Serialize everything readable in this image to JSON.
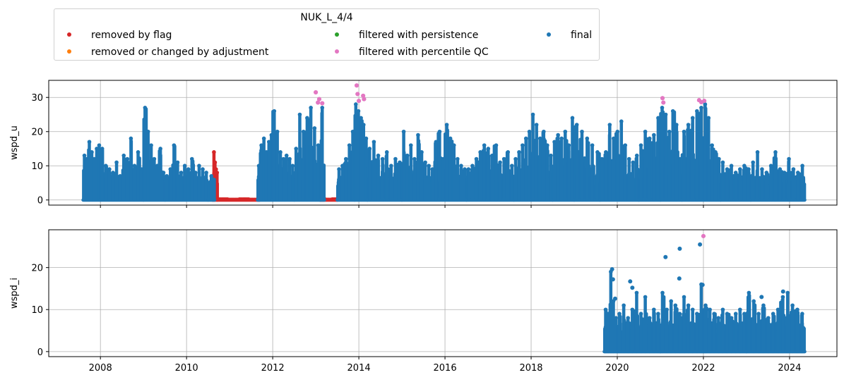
{
  "legend": {
    "title": "NUK_L_4/4",
    "items": [
      {
        "label": "removed by flag",
        "color": "#d62728"
      },
      {
        "label": "removed or changed by adjustment",
        "color": "#ff7f0e"
      },
      {
        "label": "filtered with persistence",
        "color": "#2ca02c"
      },
      {
        "label": "filtered with percentile QC",
        "color": "#e377c2"
      },
      {
        "label": "final",
        "color": "#1f77b4"
      }
    ]
  },
  "chart_data": [
    {
      "type": "scatter",
      "ylabel": "wspd_u",
      "xlim": [
        2006.8,
        2025.1
      ],
      "ylim": [
        -1.5,
        35
      ],
      "xticks": [
        2008,
        2010,
        2012,
        2014,
        2016,
        2018,
        2020,
        2022,
        2024
      ],
      "yticks": [
        0,
        10,
        20,
        30
      ],
      "grid": true,
      "series": [
        {
          "name": "final",
          "color": "#1f77b4",
          "segments": [
            {
              "x": [
                2007.6,
                2008.0
              ],
              "peaks": [
                13,
                12,
                17,
                14,
                12,
                15,
                16
              ]
            },
            {
              "x": [
                2008.0,
                2009.0
              ],
              "peaks": [
                15,
                10,
                9,
                8,
                11,
                7,
                13,
                12,
                18,
                10,
                14,
                9
              ]
            },
            {
              "x": [
                2009.0,
                2009.5
              ],
              "peaks": [
                27,
                20,
                16,
                12,
                10,
                15,
                8
              ]
            },
            {
              "x": [
                2009.5,
                2010.5
              ],
              "peaks": [
                7,
                9,
                16,
                11,
                8,
                10,
                9,
                12,
                8,
                10,
                9,
                8
              ]
            },
            {
              "x": [
                2010.5,
                2010.65
              ],
              "peaks": [
                5,
                7,
                6
              ]
            },
            {
              "x": [
                2011.65,
                2012.0
              ],
              "peaks": [
                10,
                16,
                18,
                14,
                17,
                19
              ]
            },
            {
              "x": [
                2012.0,
                2012.5
              ],
              "peaks": [
                26,
                20,
                14,
                12,
                13,
                12,
                10
              ]
            },
            {
              "x": [
                2012.5,
                2013.1
              ],
              "peaks": [
                15,
                25,
                20,
                24,
                27,
                21,
                16
              ]
            },
            {
              "x": [
                2013.1,
                2013.2
              ],
              "peaks": [
                27
              ]
            },
            {
              "x": [
                2013.5,
                2013.9
              ],
              "peaks": [
                9,
                10,
                12,
                16,
                20
              ]
            },
            {
              "x": [
                2013.9,
                2014.2
              ],
              "peaks": [
                28,
                26,
                24,
                22,
                18
              ]
            },
            {
              "x": [
                2014.2,
                2015.0
              ],
              "peaks": [
                15,
                17,
                13,
                12,
                14,
                10,
                12,
                11
              ]
            },
            {
              "x": [
                2015.0,
                2016.0
              ],
              "peaks": [
                20,
                13,
                16,
                12,
                19,
                14,
                11,
                10,
                9,
                17,
                20,
                12
              ]
            },
            {
              "x": [
                2016.0,
                2016.5
              ],
              "peaks": [
                22,
                18,
                16,
                12,
                10,
                9
              ]
            },
            {
              "x": [
                2016.5,
                2017.6
              ],
              "peaks": [
                9,
                10,
                12,
                14,
                16,
                15,
                13,
                16,
                11,
                12,
                14,
                10
              ]
            },
            {
              "x": [
                2017.6,
                2018.0
              ],
              "peaks": [
                12,
                14,
                16,
                18,
                20
              ]
            },
            {
              "x": [
                2018.0,
                2018.5
              ],
              "peaks": [
                25,
                22,
                18,
                20,
                16,
                13
              ]
            },
            {
              "x": [
                2018.5,
                2019.0
              ],
              "peaks": [
                17,
                19,
                18,
                20,
                16,
                24
              ]
            },
            {
              "x": [
                2019.0,
                2019.6
              ],
              "peaks": [
                22,
                20,
                18,
                16,
                14
              ]
            },
            {
              "x": [
                2019.6,
                2020.5
              ],
              "peaks": [
                12,
                14,
                22,
                18,
                20,
                23,
                16,
                12,
                11,
                13
              ]
            },
            {
              "x": [
                2020.5,
                2021.0
              ],
              "peaks": [
                16,
                20,
                18,
                19,
                24
              ]
            },
            {
              "x": [
                2021.0,
                2021.5
              ],
              "peaks": [
                27,
                25,
                20,
                26,
                22,
                12
              ]
            },
            {
              "x": [
                2021.5,
                2022.0
              ],
              "peaks": [
                20,
                22,
                24,
                26,
                27
              ]
            },
            {
              "x": [
                2022.0,
                2022.4
              ],
              "peaks": [
                28,
                24,
                16,
                14,
                12
              ]
            },
            {
              "x": [
                2022.4,
                2023.1
              ],
              "peaks": [
                11,
                9,
                10,
                8,
                9,
                10,
                9
              ]
            },
            {
              "x": [
                2023.1,
                2024.35
              ],
              "peaks": [
                11,
                14,
                9,
                8,
                10,
                14,
                9,
                8,
                12,
                9,
                8,
                10
              ]
            }
          ]
        },
        {
          "name": "removed by flag",
          "color": "#d62728",
          "segments": [
            {
              "x": [
                2010.6,
                2010.72
              ],
              "peaks": [
                7,
                14,
                11,
                9,
                8
              ]
            },
            {
              "x": [
                2010.72,
                2011.7
              ],
              "peaks": [
                0.3,
                0.2,
                0.3,
                0.2
              ]
            },
            {
              "x": [
                2013.1,
                2013.5
              ],
              "peaks": [
                0.3,
                0.2,
                0.3
              ]
            }
          ]
        },
        {
          "name": "filtered with percentile QC",
          "color": "#e377c2",
          "points": [
            [
              2013.0,
              31.5
            ],
            [
              2013.05,
              28.5
            ],
            [
              2013.08,
              29.5
            ],
            [
              2013.15,
              28.3
            ],
            [
              2013.95,
              33.5
            ],
            [
              2013.97,
              31
            ],
            [
              2014.0,
              29
            ],
            [
              2014.1,
              30.5
            ],
            [
              2014.12,
              29.5
            ],
            [
              2021.05,
              29.8
            ],
            [
              2021.07,
              28.5
            ],
            [
              2021.9,
              29.2
            ],
            [
              2021.95,
              28.6
            ],
            [
              2022.02,
              29.0
            ]
          ]
        }
      ]
    },
    {
      "type": "scatter",
      "ylabel": "wspd_i",
      "xlim": [
        2006.8,
        2025.1
      ],
      "ylim": [
        -1.2,
        29
      ],
      "xticks": [
        2008,
        2010,
        2012,
        2014,
        2016,
        2018,
        2020,
        2022,
        2024
      ],
      "xticklabels": [
        "2008",
        "2010",
        "2012",
        "2014",
        "2016",
        "2018",
        "2020",
        "2022",
        "2024"
      ],
      "yticks": [
        0,
        10,
        20
      ],
      "grid": true,
      "series": [
        {
          "name": "final",
          "color": "#1f77b4",
          "segments": [
            {
              "x": [
                2019.7,
                2020.0
              ],
              "peaks": [
                10,
                9,
                19,
                12,
                8
              ]
            },
            {
              "x": [
                2020.0,
                2021.0
              ],
              "peaks": [
                9,
                11,
                8,
                10,
                14,
                9,
                13,
                8,
                10,
                9
              ]
            },
            {
              "x": [
                2021.0,
                2022.0
              ],
              "peaks": [
                14,
                10,
                12,
                11,
                9,
                13,
                11,
                10,
                9,
                16
              ]
            },
            {
              "x": [
                2022.0,
                2023.0
              ],
              "peaks": [
                11,
                10,
                9,
                8,
                10,
                9,
                8,
                9,
                10,
                9
              ]
            },
            {
              "x": [
                2023.0,
                2024.35
              ],
              "peaks": [
                14,
                12,
                9,
                11,
                8,
                9,
                10,
                13,
                14,
                11,
                10,
                9
              ]
            }
          ],
          "points": [
            [
              2019.88,
              19.6
            ],
            [
              2019.9,
              17.2
            ],
            [
              2019.95,
              12.6
            ],
            [
              2020.3,
              16.7
            ],
            [
              2020.35,
              15.2
            ],
            [
              2021.12,
              22.5
            ],
            [
              2021.45,
              24.5
            ],
            [
              2021.44,
              17.4
            ],
            [
              2021.92,
              25.5
            ],
            [
              2021.98,
              15.9
            ],
            [
              2023.35,
              13.0
            ],
            [
              2023.85,
              14.3
            ]
          ]
        },
        {
          "name": "filtered with percentile QC",
          "color": "#e377c2",
          "points": [
            [
              2022.0,
              27.5
            ]
          ]
        }
      ]
    }
  ]
}
